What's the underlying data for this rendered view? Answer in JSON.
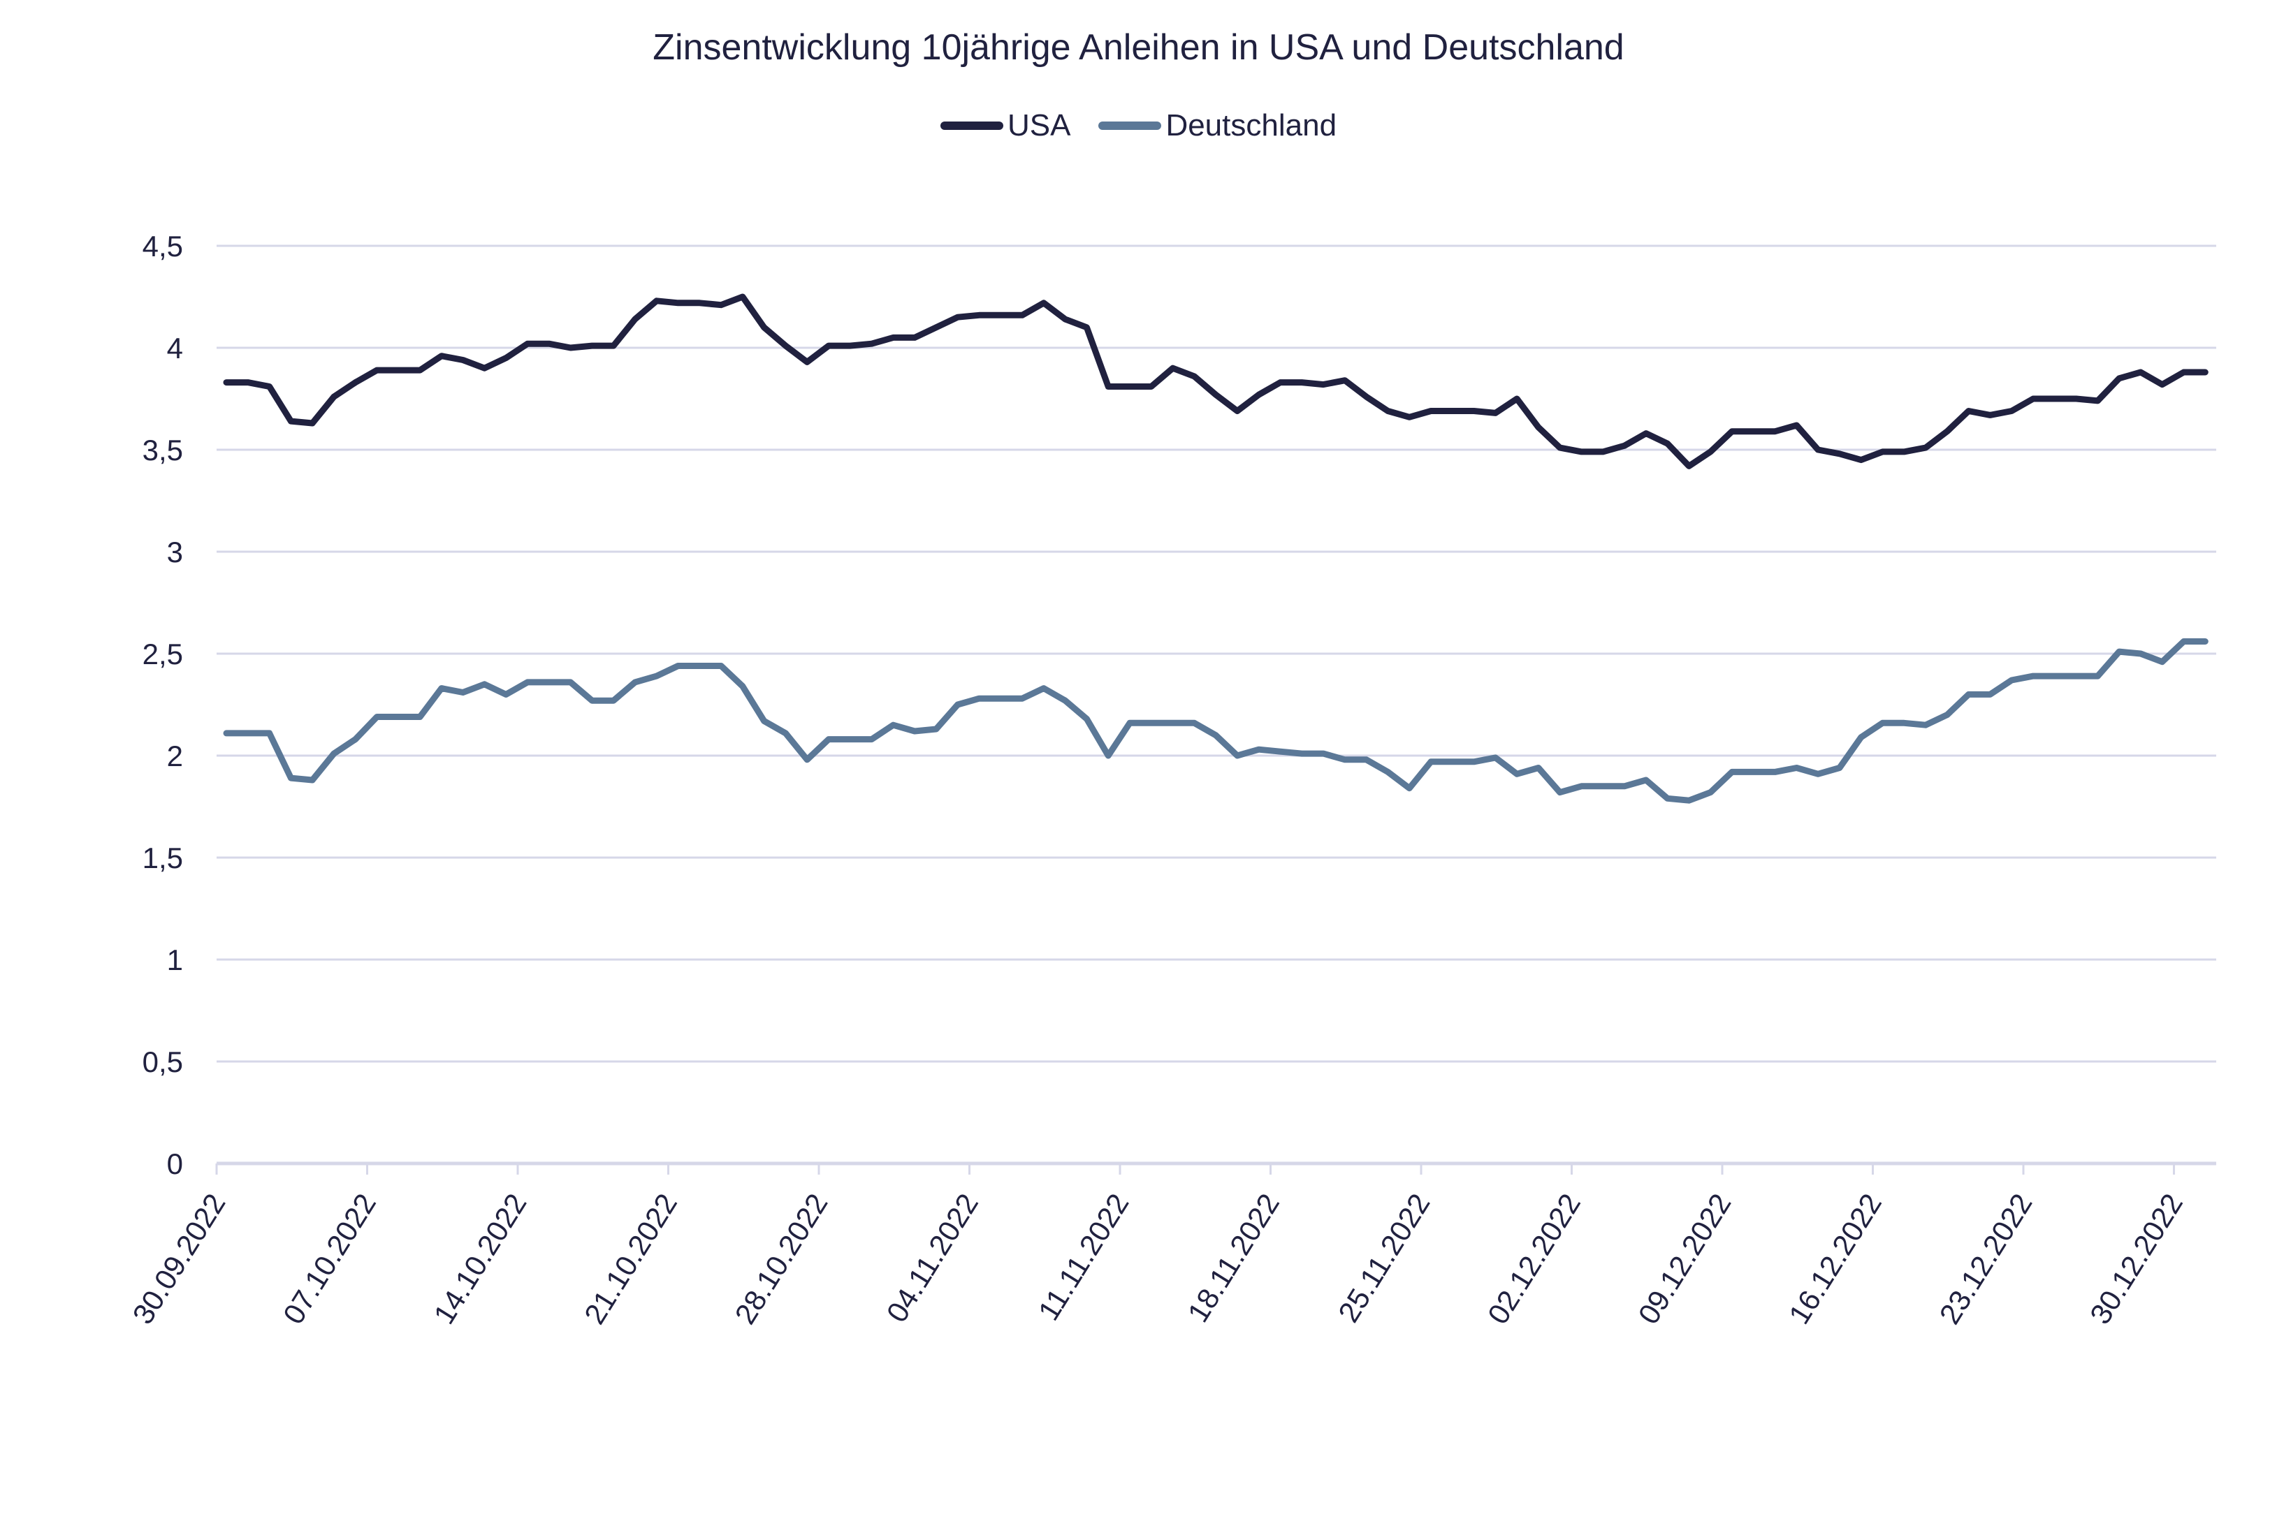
{
  "chart_data": {
    "type": "line",
    "title": "Zinsentwicklung 10jährige Anleihen in USA und Deutschland",
    "xlabel": "",
    "ylabel": "",
    "ylim": [
      0,
      4.5
    ],
    "yticks": [
      "0",
      "0,5",
      "1",
      "1,5",
      "2",
      "2,5",
      "3",
      "3,5",
      "4",
      "4,5"
    ],
    "xticks": [
      "30.09.2022",
      "07.10.2022",
      "14.10.2022",
      "21.10.2022",
      "28.10.2022",
      "04.11.2022",
      "11.11.2022",
      "18.11.2022",
      "25.11.2022",
      "02.12.2022",
      "09.12.2022",
      "16.12.2022",
      "23.12.2022",
      "30.12.2022"
    ],
    "grid": true,
    "legend_position": "top",
    "series": [
      {
        "name": "USA",
        "color": "#20213f",
        "values": [
          3.83,
          3.83,
          3.81,
          3.64,
          3.63,
          3.76,
          3.83,
          3.89,
          3.89,
          3.89,
          3.96,
          3.94,
          3.9,
          3.95,
          4.02,
          4.02,
          4.0,
          4.01,
          4.01,
          4.14,
          4.23,
          4.22,
          4.22,
          4.21,
          4.25,
          4.1,
          4.01,
          3.93,
          4.01,
          4.01,
          4.02,
          4.05,
          4.05,
          4.1,
          4.15,
          4.16,
          4.16,
          4.16,
          4.22,
          4.14,
          4.1,
          3.81,
          3.81,
          3.81,
          3.9,
          3.86,
          3.77,
          3.69,
          3.77,
          3.83,
          3.83,
          3.82,
          3.84,
          3.76,
          3.69,
          3.66,
          3.69,
          3.69,
          3.69,
          3.68,
          3.75,
          3.61,
          3.51,
          3.49,
          3.49,
          3.52,
          3.58,
          3.53,
          3.42,
          3.49,
          3.59,
          3.59,
          3.59,
          3.62,
          3.5,
          3.48,
          3.45,
          3.49,
          3.49,
          3.51,
          3.59,
          3.69,
          3.67,
          3.69,
          3.75,
          3.75,
          3.75,
          3.74,
          3.85,
          3.88,
          3.82,
          3.88,
          3.88
        ]
      },
      {
        "name": "Deutschland",
        "color": "#5b7897",
        "values": [
          2.11,
          2.11,
          2.11,
          1.89,
          1.88,
          2.01,
          2.08,
          2.19,
          2.19,
          2.19,
          2.33,
          2.31,
          2.35,
          2.3,
          2.36,
          2.36,
          2.36,
          2.27,
          2.27,
          2.36,
          2.39,
          2.44,
          2.44,
          2.44,
          2.34,
          2.17,
          2.11,
          1.98,
          2.08,
          2.08,
          2.08,
          2.15,
          2.12,
          2.13,
          2.25,
          2.28,
          2.28,
          2.28,
          2.33,
          2.27,
          2.18,
          2.0,
          2.16,
          2.16,
          2.16,
          2.16,
          2.1,
          2.0,
          2.03,
          2.02,
          2.01,
          2.01,
          1.98,
          1.98,
          1.92,
          1.84,
          1.97,
          1.97,
          1.97,
          1.99,
          1.91,
          1.94,
          1.82,
          1.85,
          1.85,
          1.85,
          1.88,
          1.79,
          1.78,
          1.82,
          1.92,
          1.92,
          1.92,
          1.94,
          1.91,
          1.94,
          2.09,
          2.16,
          2.16,
          2.15,
          2.2,
          2.3,
          2.3,
          2.37,
          2.39,
          2.39,
          2.39,
          2.39,
          2.51,
          2.5,
          2.46,
          2.56,
          2.56
        ]
      }
    ]
  },
  "legend": {
    "usa_label": "USA",
    "de_label": "Deutschland"
  }
}
